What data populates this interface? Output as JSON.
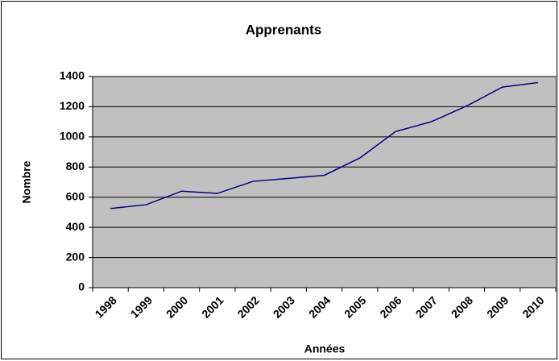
{
  "chart_data": {
    "type": "line",
    "title": "Apprenants",
    "x_label": "Années",
    "y_label": "Nombre",
    "categories": [
      "1998",
      "1999",
      "2000",
      "2001",
      "2002",
      "2003",
      "2004",
      "2005",
      "2006",
      "2007",
      "2008",
      "2009",
      "2010"
    ],
    "series": [
      {
        "name": "Apprenants",
        "color": "#000080",
        "values": [
          525,
          550,
          640,
          625,
          705,
          725,
          745,
          860,
          1035,
          1100,
          1205,
          1330,
          1360
        ]
      }
    ],
    "ylim": [
      0,
      1400
    ],
    "yticks": [
      0,
      200,
      400,
      600,
      800,
      1000,
      1200,
      1400
    ],
    "grid": true,
    "plot_background": "#c0c0c0"
  }
}
